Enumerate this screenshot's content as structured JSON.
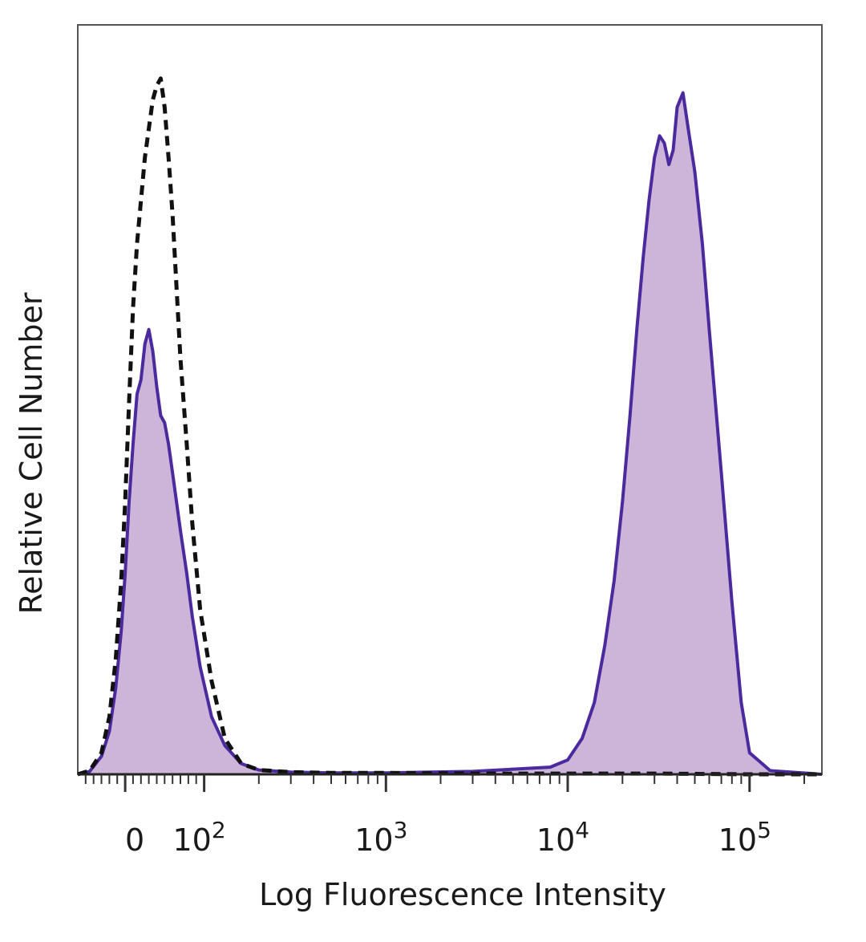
{
  "chart_data": {
    "type": "area",
    "title": "",
    "xlabel": "Log Fluorescence Intensity",
    "ylabel": "Relative Cell Number",
    "x_scale": "biexponential",
    "xlim": [
      -60,
      250000
    ],
    "ylim": [
      0,
      1
    ],
    "grid": false,
    "legend": "none",
    "x_ticks": [
      {
        "value": 0,
        "base": "0",
        "exp": ""
      },
      {
        "value": 100,
        "base": "10",
        "exp": "2"
      },
      {
        "value": 1000,
        "base": "10",
        "exp": "3"
      },
      {
        "value": 10000,
        "base": "10",
        "exp": "4"
      },
      {
        "value": 100000,
        "base": "10",
        "exp": "5"
      }
    ],
    "series": [
      {
        "style": "dashed",
        "color": "#111111",
        "fill": "none",
        "x": [
          -60,
          -45,
          -30,
          -20,
          -12,
          -5,
          0,
          5,
          10,
          15,
          20,
          25,
          30,
          35,
          40,
          45,
          50,
          55,
          60,
          65,
          70,
          78,
          85,
          95,
          110,
          130,
          160,
          200,
          300,
          500,
          1000,
          3000,
          10000,
          30000,
          100000,
          250000
        ],
        "y": [
          0,
          0.005,
          0.03,
          0.08,
          0.16,
          0.27,
          0.38,
          0.52,
          0.65,
          0.74,
          0.8,
          0.86,
          0.9,
          0.94,
          0.96,
          0.97,
          0.93,
          0.86,
          0.78,
          0.68,
          0.58,
          0.46,
          0.35,
          0.23,
          0.13,
          0.05,
          0.015,
          0.006,
          0.003,
          0.002,
          0.002,
          0.001,
          0.001,
          0.001,
          0.0,
          0.0
        ]
      },
      {
        "style": "solid-filled",
        "color": "#4b2a9e",
        "fill": "#cdb5da",
        "x": [
          -60,
          -45,
          -30,
          -20,
          -12,
          -5,
          0,
          5,
          10,
          15,
          20,
          25,
          30,
          35,
          40,
          45,
          50,
          55,
          60,
          65,
          70,
          78,
          85,
          95,
          110,
          130,
          160,
          200,
          300,
          500,
          1000,
          3000,
          8000,
          10000,
          12000,
          14000,
          16000,
          18000,
          20000,
          22000,
          24000,
          26000,
          28000,
          30000,
          32000,
          34000,
          36000,
          38000,
          40000,
          43000,
          46000,
          50000,
          55000,
          60000,
          70000,
          80000,
          90000,
          100000,
          130000,
          250000
        ],
        "y": [
          0,
          0.004,
          0.025,
          0.06,
          0.12,
          0.2,
          0.28,
          0.38,
          0.46,
          0.53,
          0.55,
          0.6,
          0.62,
          0.59,
          0.54,
          0.5,
          0.49,
          0.46,
          0.42,
          0.38,
          0.34,
          0.28,
          0.22,
          0.15,
          0.08,
          0.04,
          0.015,
          0.006,
          0.003,
          0.002,
          0.002,
          0.004,
          0.01,
          0.02,
          0.05,
          0.1,
          0.18,
          0.27,
          0.38,
          0.5,
          0.62,
          0.72,
          0.8,
          0.86,
          0.89,
          0.88,
          0.85,
          0.87,
          0.93,
          0.95,
          0.9,
          0.84,
          0.74,
          0.62,
          0.42,
          0.24,
          0.1,
          0.03,
          0.005,
          0
        ]
      }
    ]
  }
}
